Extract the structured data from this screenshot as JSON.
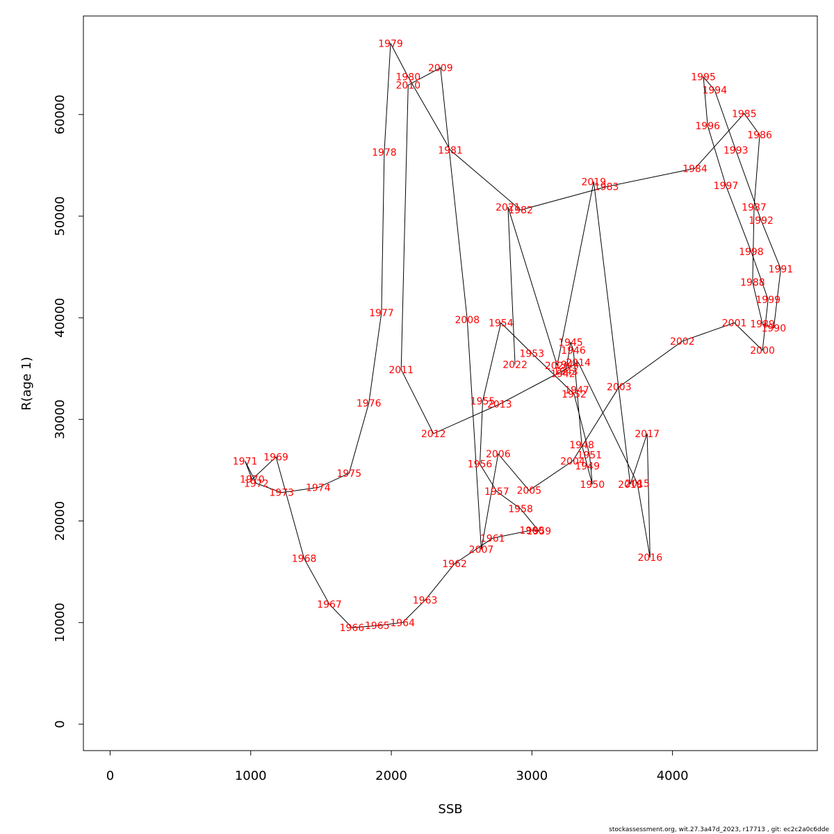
{
  "chart_data": {
    "type": "line",
    "title": "",
    "xlabel": "SSB",
    "ylabel": "R(age 1)",
    "xlim": [
      -190,
      5030
    ],
    "ylim": [
      -2600,
      69700
    ],
    "xticks": [
      0,
      1000,
      2000,
      3000,
      4000
    ],
    "yticks": [
      0,
      10000,
      20000,
      30000,
      40000,
      50000,
      60000
    ],
    "xtick_labels": [
      "0",
      "1000",
      "2000",
      "3000",
      "4000"
    ],
    "ytick_labels": [
      "0",
      "10000",
      "20000",
      "30000",
      "40000",
      "50000",
      "60000"
    ],
    "grid": false,
    "line_color": "#000000",
    "label_color": "#ff0000",
    "points": [
      {
        "label": "1942",
        "x": 3220,
        "y": 34500
      },
      {
        "label": "1943",
        "x": 3240,
        "y": 34700
      },
      {
        "label": "1944",
        "x": 3250,
        "y": 35400
      },
      {
        "label": "1945",
        "x": 3275,
        "y": 37600
      },
      {
        "label": "1946",
        "x": 3295,
        "y": 36800
      },
      {
        "label": "1947",
        "x": 3320,
        "y": 32900
      },
      {
        "label": "1948",
        "x": 3355,
        "y": 27500
      },
      {
        "label": "1949",
        "x": 3395,
        "y": 25400
      },
      {
        "label": "1950",
        "x": 3430,
        "y": 23600
      },
      {
        "label": "1951",
        "x": 3410,
        "y": 26500
      },
      {
        "label": "1952",
        "x": 3300,
        "y": 32500
      },
      {
        "label": "1953",
        "x": 3000,
        "y": 36500
      },
      {
        "label": "1954",
        "x": 2780,
        "y": 39500
      },
      {
        "label": "1955",
        "x": 2650,
        "y": 31800
      },
      {
        "label": "1956",
        "x": 2630,
        "y": 25600
      },
      {
        "label": "1957",
        "x": 2750,
        "y": 22900
      },
      {
        "label": "1958",
        "x": 2920,
        "y": 21200
      },
      {
        "label": "1959",
        "x": 3050,
        "y": 19000
      },
      {
        "label": "1960",
        "x": 3000,
        "y": 19100
      },
      {
        "label": "1961",
        "x": 2720,
        "y": 18300
      },
      {
        "label": "1962",
        "x": 2450,
        "y": 15800
      },
      {
        "label": "1963",
        "x": 2240,
        "y": 12200
      },
      {
        "label": "1964",
        "x": 2080,
        "y": 10000
      },
      {
        "label": "1965",
        "x": 1900,
        "y": 9700
      },
      {
        "label": "1966",
        "x": 1720,
        "y": 9500
      },
      {
        "label": "1967",
        "x": 1560,
        "y": 11800
      },
      {
        "label": "1968",
        "x": 1380,
        "y": 16300
      },
      {
        "label": "1969",
        "x": 1180,
        "y": 26300
      },
      {
        "label": "1970",
        "x": 1010,
        "y": 24100
      },
      {
        "label": "1971",
        "x": 960,
        "y": 25900
      },
      {
        "label": "1972",
        "x": 1040,
        "y": 23700
      },
      {
        "label": "1973",
        "x": 1220,
        "y": 22800
      },
      {
        "label": "1974",
        "x": 1480,
        "y": 23300
      },
      {
        "label": "1975",
        "x": 1700,
        "y": 24700
      },
      {
        "label": "1976",
        "x": 1840,
        "y": 31600
      },
      {
        "label": "1977",
        "x": 1930,
        "y": 40500
      },
      {
        "label": "1978",
        "x": 1950,
        "y": 56300
      },
      {
        "label": "1979",
        "x": 1995,
        "y": 67000
      },
      {
        "label": "1980",
        "x": 2120,
        "y": 63700
      },
      {
        "label": "1981",
        "x": 2420,
        "y": 56500
      },
      {
        "label": "1982",
        "x": 2920,
        "y": 50600
      },
      {
        "label": "1983",
        "x": 3530,
        "y": 52900
      },
      {
        "label": "1984",
        "x": 4160,
        "y": 54700
      },
      {
        "label": "1985",
        "x": 4510,
        "y": 60100
      },
      {
        "label": "1986",
        "x": 4620,
        "y": 58000
      },
      {
        "label": "1987",
        "x": 4580,
        "y": 50900
      },
      {
        "label": "1988",
        "x": 4570,
        "y": 43500
      },
      {
        "label": "1989",
        "x": 4640,
        "y": 39400
      },
      {
        "label": "1990",
        "x": 4720,
        "y": 39000
      },
      {
        "label": "1991",
        "x": 4770,
        "y": 44800
      },
      {
        "label": "1992",
        "x": 4630,
        "y": 49600
      },
      {
        "label": "1993",
        "x": 4450,
        "y": 56500
      },
      {
        "label": "1994",
        "x": 4300,
        "y": 62400
      },
      {
        "label": "1995",
        "x": 4220,
        "y": 63700
      },
      {
        "label": "1996",
        "x": 4250,
        "y": 58900
      },
      {
        "label": "1997",
        "x": 4380,
        "y": 53000
      },
      {
        "label": "1998",
        "x": 4560,
        "y": 46500
      },
      {
        "label": "1999",
        "x": 4680,
        "y": 41800
      },
      {
        "label": "2000",
        "x": 4640,
        "y": 36800
      },
      {
        "label": "2001",
        "x": 4440,
        "y": 39500
      },
      {
        "label": "2002",
        "x": 4070,
        "y": 37700
      },
      {
        "label": "2003",
        "x": 3620,
        "y": 33200
      },
      {
        "label": "2004",
        "x": 3290,
        "y": 25900
      },
      {
        "label": "2005",
        "x": 2980,
        "y": 23000
      },
      {
        "label": "2006",
        "x": 2760,
        "y": 26600
      },
      {
        "label": "2007",
        "x": 2640,
        "y": 17200
      },
      {
        "label": "2008",
        "x": 2540,
        "y": 39800
      },
      {
        "label": "2009",
        "x": 2350,
        "y": 64600
      },
      {
        "label": "2010",
        "x": 2120,
        "y": 62900
      },
      {
        "label": "2011",
        "x": 2070,
        "y": 34900
      },
      {
        "label": "2012",
        "x": 2300,
        "y": 28600
      },
      {
        "label": "2013",
        "x": 2770,
        "y": 31500
      },
      {
        "label": "2014",
        "x": 3330,
        "y": 35600
      },
      {
        "label": "2015",
        "x": 3750,
        "y": 23700
      },
      {
        "label": "2016",
        "x": 3840,
        "y": 16400
      },
      {
        "label": "2017",
        "x": 3820,
        "y": 28600
      },
      {
        "label": "2018",
        "x": 3700,
        "y": 23600
      },
      {
        "label": "2019",
        "x": 3440,
        "y": 53400
      },
      {
        "label": "2020",
        "x": 3180,
        "y": 35300
      },
      {
        "label": "2021",
        "x": 2830,
        "y": 50900
      },
      {
        "label": "2022",
        "x": 2880,
        "y": 35400
      }
    ]
  },
  "footer": "stockassessment.org, wit.27.3a47d_2023, r17713 , git: ec2c2a0c6dde"
}
